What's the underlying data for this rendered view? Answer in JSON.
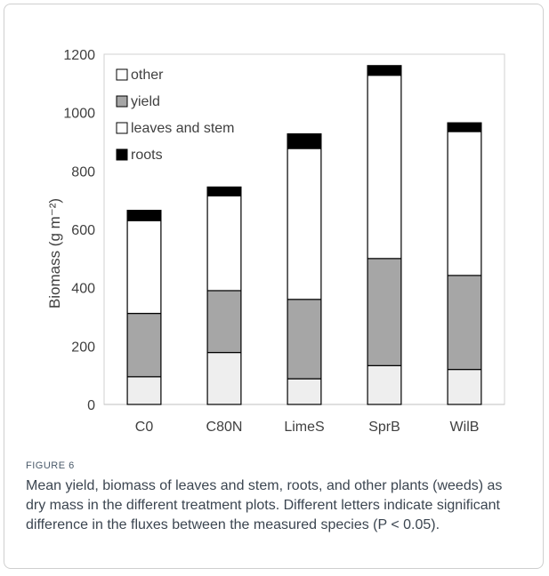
{
  "figure": {
    "label": "FIGURE 6",
    "caption": "Mean yield, biomass of leaves and stem, roots, and other plants (weeds) as dry mass in the different treatment plots. Different letters indicate significant difference in the fluxes between the measured species (P < 0.05)."
  },
  "chart_data": {
    "type": "bar",
    "stacked": true,
    "title": "",
    "xlabel": "",
    "ylabel": "Biomass (g m⁻²)",
    "ylim": [
      0,
      1200
    ],
    "yticks": [
      0,
      200,
      400,
      600,
      800,
      1000,
      1200
    ],
    "categories": [
      "C0",
      "C80N",
      "LimeS",
      "SprB",
      "WilB"
    ],
    "legend_position": "top-left",
    "series": [
      {
        "name": "other",
        "color": "#eeeeee",
        "values": [
          95,
          178,
          88,
          133,
          120
        ]
      },
      {
        "name": "yield",
        "color": "#a6a6a6",
        "values": [
          217,
          212,
          272,
          367,
          322
        ]
      },
      {
        "name": "leaves and stem",
        "color": "#ffffff",
        "values": [
          318,
          325,
          517,
          628,
          493
        ]
      },
      {
        "name": "roots",
        "color": "#000000",
        "values": [
          35,
          30,
          50,
          33,
          30
        ]
      }
    ],
    "legend_order": [
      "other",
      "yield",
      "leaves and stem",
      "roots"
    ],
    "legend_colors": {
      "other": "#ffffff",
      "yield": "#a6a6a6",
      "leaves and stem": "#ffffff",
      "roots": "#000000"
    }
  }
}
